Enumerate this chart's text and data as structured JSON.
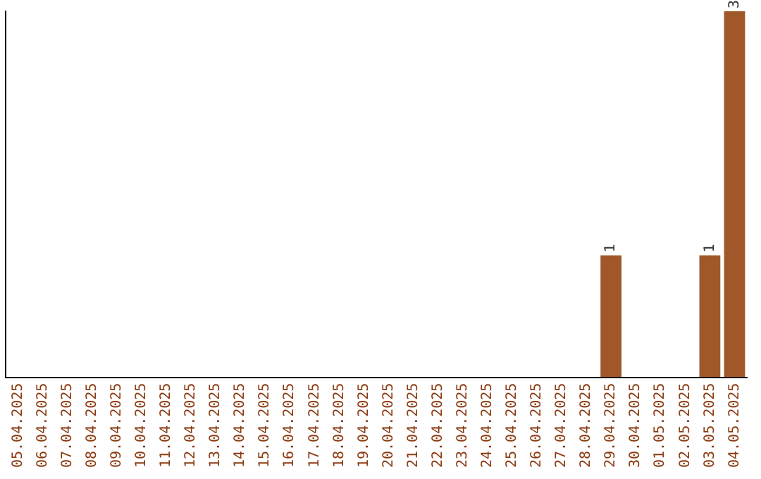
{
  "chart_data": {
    "type": "bar",
    "categories": [
      "05.04.2025",
      "06.04.2025",
      "07.04.2025",
      "08.04.2025",
      "09.04.2025",
      "10.04.2025",
      "11.04.2025",
      "12.04.2025",
      "13.04.2025",
      "14.04.2025",
      "15.04.2025",
      "16.04.2025",
      "17.04.2025",
      "18.04.2025",
      "19.04.2025",
      "20.04.2025",
      "21.04.2025",
      "22.04.2025",
      "23.04.2025",
      "24.04.2025",
      "25.04.2025",
      "26.04.2025",
      "27.04.2025",
      "28.04.2025",
      "29.04.2025",
      "30.04.2025",
      "01.05.2025",
      "02.05.2025",
      "03.05.2025",
      "04.05.2025"
    ],
    "values": [
      null,
      null,
      null,
      null,
      null,
      null,
      null,
      null,
      null,
      null,
      null,
      null,
      null,
      null,
      null,
      null,
      null,
      null,
      null,
      null,
      null,
      null,
      null,
      null,
      1,
      null,
      null,
      null,
      1,
      3
    ],
    "data_labels": true,
    "color": "#a0582a",
    "ylim": [
      0,
      3
    ],
    "grid": false,
    "legend": false,
    "tick_labels": "x"
  }
}
